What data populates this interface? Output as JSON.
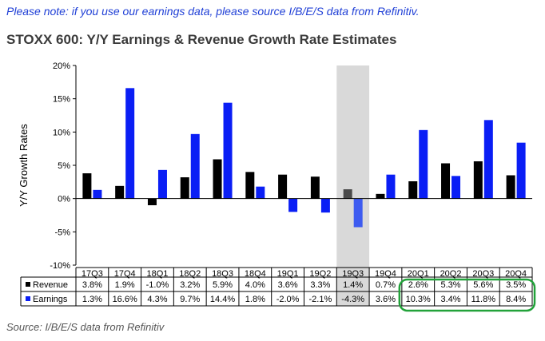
{
  "header": {
    "note": "Please note: if you use our earnings data, please source I/B/E/S data from Refinitiv.",
    "title": "STOXX 600: Y/Y Earnings & Revenue Growth Rate Estimates"
  },
  "footer": {
    "source": "Source: I/B/E/S data from Refinitiv"
  },
  "colors": {
    "revenue": "#000000",
    "earnings": "#0a1ef5",
    "highlight_band": "#d9d9d9",
    "highlight_revenue": "#4a4a4a",
    "highlight_earnings": "#3d5bf0",
    "highlight_box": "#22a23a"
  },
  "chart_data": {
    "type": "bar",
    "ylabel": "Y/Y Growth Rates",
    "ylim": [
      -10,
      20
    ],
    "yticks": [
      "-10%",
      "-5%",
      "0%",
      "5%",
      "10%",
      "15%",
      "20%"
    ],
    "grid": false,
    "legend": "table-below",
    "categories": [
      "17Q3",
      "17Q4",
      "18Q1",
      "18Q2",
      "18Q3",
      "18Q4",
      "19Q1",
      "19Q2",
      "19Q3",
      "19Q4",
      "20Q1",
      "20Q2",
      "20Q3",
      "20Q4"
    ],
    "highlighted_category": "19Q3",
    "boxed_categories": [
      "20Q1",
      "20Q2",
      "20Q3",
      "20Q4"
    ],
    "series": [
      {
        "name": "Revenue",
        "values": [
          3.8,
          1.9,
          -1.0,
          3.2,
          5.9,
          4.0,
          3.6,
          3.3,
          1.4,
          0.7,
          2.6,
          5.3,
          5.6,
          3.5
        ],
        "labels": [
          "3.8%",
          "1.9%",
          "-1.0%",
          "3.2%",
          "5.9%",
          "4.0%",
          "3.6%",
          "3.3%",
          "1.4%",
          "0.7%",
          "2.6%",
          "5.3%",
          "5.6%",
          "3.5%"
        ]
      },
      {
        "name": "Earnings",
        "values": [
          1.3,
          16.6,
          4.3,
          9.7,
          14.4,
          1.8,
          -2.0,
          -2.1,
          -4.3,
          3.6,
          10.3,
          3.4,
          11.8,
          8.4
        ],
        "labels": [
          "1.3%",
          "16.6%",
          "4.3%",
          "9.7%",
          "14.4%",
          "1.8%",
          "-2.0%",
          "-2.1%",
          "-4.3%",
          "3.6%",
          "10.3%",
          "3.4%",
          "11.8%",
          "8.4%"
        ]
      }
    ]
  }
}
